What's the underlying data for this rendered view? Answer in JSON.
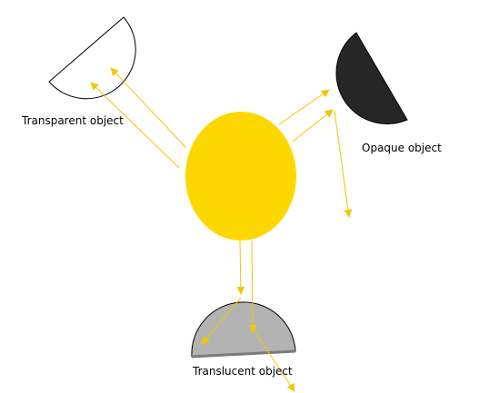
{
  "labels": {
    "transparent": "Transparent object",
    "opaque": "Opaque object",
    "translucent": "Translucent object"
  },
  "colors": {
    "light_source": "#ffd700",
    "rays": "#f0c800",
    "transparent_fill": "#ffffff",
    "opaque_fill": "#262626",
    "translucent_fill": "#b3b3b3",
    "outline": "#000000"
  }
}
